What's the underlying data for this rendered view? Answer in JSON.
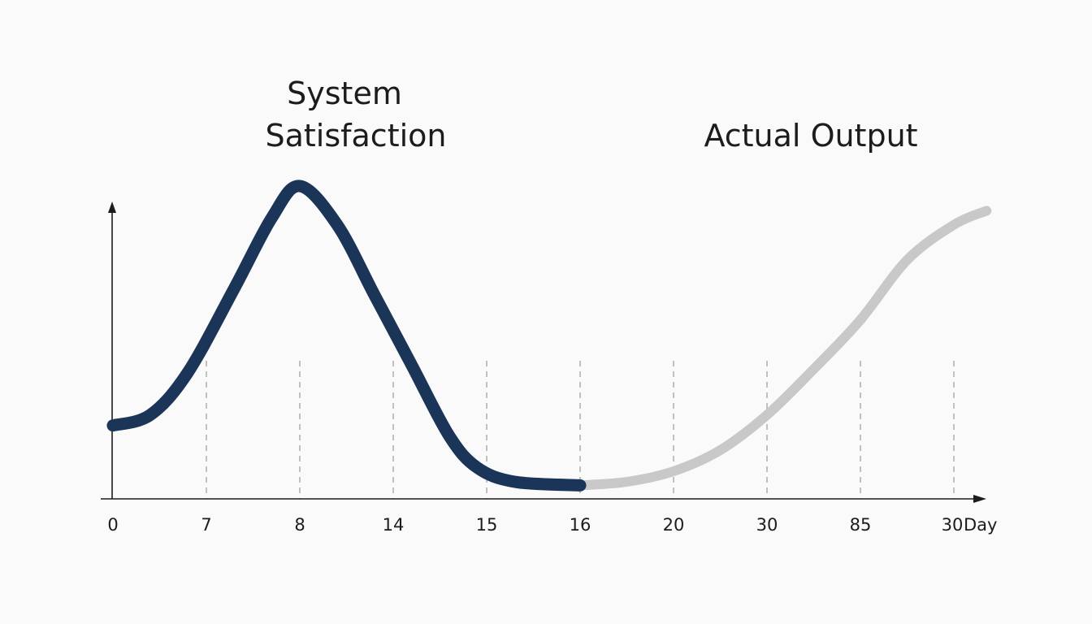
{
  "chart_data": {
    "type": "line",
    "title": "",
    "xlabel": "Day",
    "ylabel": "",
    "grid": "dashed vertical gridlines at each tick",
    "legend": "none",
    "x_ticks": [
      "0",
      "7",
      "8",
      "14",
      "15",
      "16",
      "20",
      "30",
      "85",
      "30"
    ],
    "x_unit": "Day",
    "ylim": [
      0,
      1
    ],
    "series": [
      {
        "name": "System Satisfaction",
        "color": "#1b3558",
        "points": [
          [
            0,
            0.19
          ],
          [
            0.4,
            0.22
          ],
          [
            0.8,
            0.34
          ],
          [
            1.3,
            0.58
          ],
          [
            1.7,
            0.78
          ],
          [
            2.0,
            0.87
          ],
          [
            2.4,
            0.76
          ],
          [
            2.8,
            0.56
          ],
          [
            3.2,
            0.36
          ],
          [
            3.6,
            0.16
          ],
          [
            3.9,
            0.07
          ],
          [
            4.3,
            0.03
          ],
          [
            5.0,
            0.02
          ]
        ]
      },
      {
        "name": "Actual Output",
        "color": "#c8c8c8",
        "points": [
          [
            5.0,
            0.02
          ],
          [
            5.5,
            0.03
          ],
          [
            6.0,
            0.06
          ],
          [
            6.5,
            0.12
          ],
          [
            7.0,
            0.22
          ],
          [
            7.5,
            0.35
          ],
          [
            8.0,
            0.49
          ],
          [
            8.5,
            0.66
          ],
          [
            9.0,
            0.76
          ],
          [
            9.35,
            0.8
          ]
        ]
      }
    ],
    "annotations": [
      {
        "text_lines": [
          "System",
          "Satisfaction"
        ],
        "series": 0
      },
      {
        "text_lines": [
          "Actual Output"
        ],
        "series": 1
      }
    ]
  }
}
